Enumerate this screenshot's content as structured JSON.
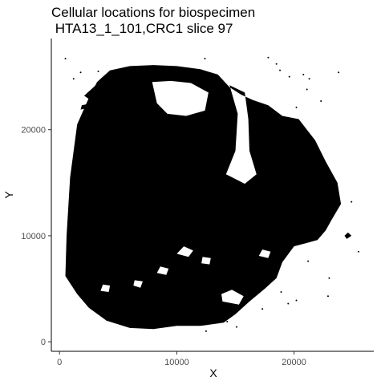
{
  "chart_data": {
    "type": "scatter",
    "title_line1": "Cellular locations for biospecimen",
    "title_line2": " HTA13_1_101,CRC1 slice 97",
    "xlabel": "X",
    "ylabel": "Y",
    "xlim": [
      -700,
      26800
    ],
    "ylim": [
      -900,
      28600
    ],
    "x_ticks": [
      0,
      10000,
      20000
    ],
    "y_ticks": [
      0,
      10000,
      20000
    ],
    "tick_labels_x": [
      "0",
      "10000",
      "20000"
    ],
    "tick_labels_y": [
      "0",
      "10000",
      "20000"
    ],
    "grid": false,
    "marker_color": "#000000",
    "point_count": "dense (tissue section, too many cells to enumerate)",
    "tissue_outline": [
      [
        600,
        10000
      ],
      [
        900,
        15500
      ],
      [
        1500,
        20500
      ],
      [
        2500,
        23000
      ],
      [
        3200,
        24500
      ],
      [
        4300,
        25600
      ],
      [
        6000,
        26000
      ],
      [
        8000,
        26100
      ],
      [
        10000,
        26000
      ],
      [
        12000,
        25700
      ],
      [
        13500,
        25200
      ],
      [
        14500,
        24000
      ],
      [
        15500,
        23300
      ],
      [
        16500,
        22800
      ],
      [
        17800,
        22300
      ],
      [
        19000,
        21300
      ],
      [
        20400,
        21000
      ],
      [
        21800,
        19000
      ],
      [
        22700,
        17000
      ],
      [
        23700,
        15000
      ],
      [
        24000,
        13000
      ],
      [
        23200,
        11500
      ],
      [
        22700,
        10500
      ],
      [
        22000,
        9600
      ],
      [
        21000,
        9300
      ],
      [
        20000,
        9000
      ],
      [
        19000,
        7500
      ],
      [
        18500,
        6000
      ],
      [
        17500,
        5000
      ],
      [
        16200,
        3800
      ],
      [
        15000,
        2600
      ],
      [
        14000,
        1800
      ],
      [
        12000,
        1500
      ],
      [
        10000,
        1500
      ],
      [
        8000,
        1200
      ],
      [
        6000,
        1300
      ],
      [
        4000,
        2000
      ],
      [
        2500,
        3200
      ],
      [
        1500,
        4500
      ],
      [
        500,
        6200
      ]
    ],
    "holes": [
      [
        [
          14500,
          24200
        ],
        [
          15200,
          21500
        ],
        [
          15000,
          18000
        ],
        [
          14200,
          15800
        ],
        [
          15800,
          14900
        ],
        [
          16800,
          15800
        ],
        [
          16200,
          18000
        ],
        [
          16100,
          21000
        ],
        [
          15800,
          23500
        ]
      ],
      [
        [
          7900,
          24500
        ],
        [
          8300,
          22500
        ],
        [
          9200,
          21500
        ],
        [
          10800,
          21300
        ],
        [
          12400,
          21800
        ],
        [
          12700,
          23500
        ],
        [
          11200,
          24400
        ],
        [
          9500,
          24600
        ]
      ],
      [
        [
          10000,
          8300
        ],
        [
          11000,
          8000
        ],
        [
          11400,
          8600
        ],
        [
          10600,
          9000
        ]
      ],
      [
        [
          8300,
          6500
        ],
        [
          9100,
          6300
        ],
        [
          9300,
          6900
        ],
        [
          8600,
          7100
        ]
      ],
      [
        [
          12100,
          7400
        ],
        [
          12800,
          7300
        ],
        [
          12900,
          7900
        ],
        [
          12200,
          8000
        ]
      ],
      [
        [
          13900,
          3800
        ],
        [
          15300,
          3500
        ],
        [
          15700,
          4300
        ],
        [
          14700,
          4900
        ],
        [
          13800,
          4500
        ]
      ],
      [
        [
          3500,
          4800
        ],
        [
          4200,
          4700
        ],
        [
          4300,
          5300
        ],
        [
          3700,
          5400
        ]
      ],
      [
        [
          17000,
          8100
        ],
        [
          17800,
          7900
        ],
        [
          18000,
          8500
        ],
        [
          17300,
          8700
        ]
      ],
      [
        [
          6300,
          5300
        ],
        [
          6900,
          5100
        ],
        [
          7100,
          5700
        ],
        [
          6400,
          5800
        ]
      ]
    ],
    "islands": [
      [
        [
          2100,
          23200
        ],
        [
          3200,
          24300
        ],
        [
          3600,
          24000
        ],
        [
          2500,
          22900
        ]
      ],
      [
        [
          1900,
          22300
        ],
        [
          2300,
          22400
        ],
        [
          2200,
          22000
        ],
        [
          1800,
          21900
        ]
      ],
      [
        [
          24300,
          10000
        ],
        [
          24600,
          10300
        ],
        [
          24900,
          10000
        ],
        [
          24500,
          9700
        ]
      ]
    ],
    "scatter_points": [
      [
        500,
        26700
      ],
      [
        1800,
        25400
      ],
      [
        3300,
        25500
      ],
      [
        12400,
        26700
      ],
      [
        17800,
        26800
      ],
      [
        18500,
        26200
      ],
      [
        18800,
        25600
      ],
      [
        19600,
        25000
      ],
      [
        20800,
        25200
      ],
      [
        21300,
        24800
      ],
      [
        21100,
        23800
      ],
      [
        20200,
        22100
      ],
      [
        23800,
        25400
      ],
      [
        22300,
        22700
      ],
      [
        25500,
        8500
      ],
      [
        22400,
        12200
      ],
      [
        18900,
        4700
      ],
      [
        19500,
        3600
      ],
      [
        20200,
        3900
      ],
      [
        22900,
        4300
      ],
      [
        17300,
        3100
      ],
      [
        15100,
        1400
      ],
      [
        14300,
        1900
      ],
      [
        12500,
        1000
      ],
      [
        24900,
        13200
      ],
      [
        1200,
        24800
      ],
      [
        1700,
        17000
      ],
      [
        13600,
        3000
      ],
      [
        21200,
        7600
      ],
      [
        23000,
        6000
      ]
    ]
  }
}
